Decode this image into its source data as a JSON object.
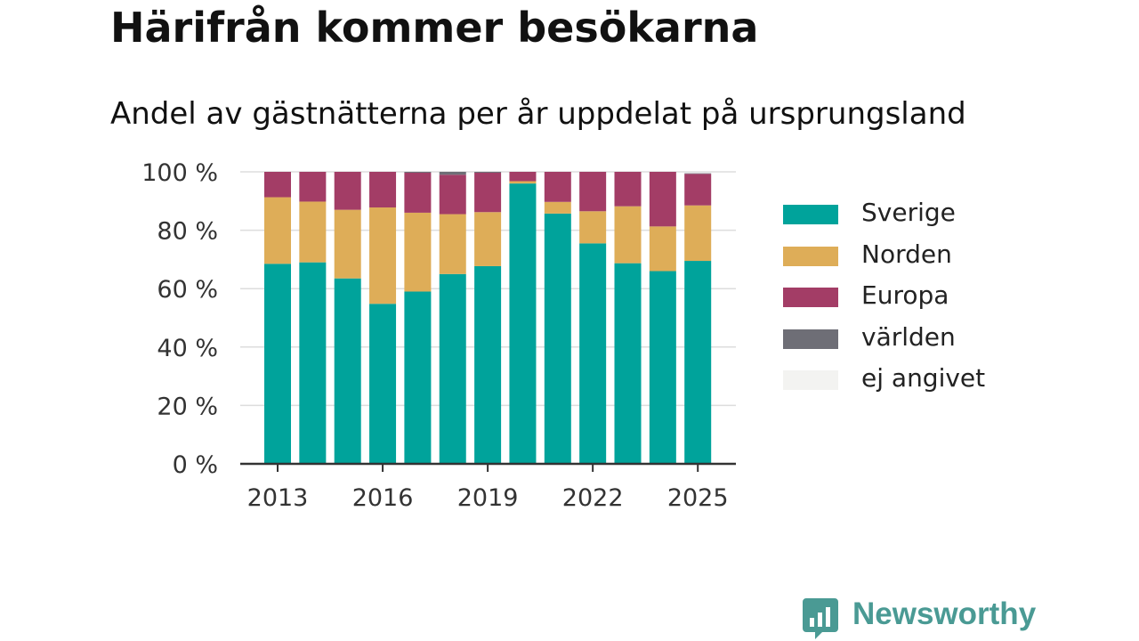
{
  "title": "Härifrån kommer besökarna",
  "subtitle": "Andel av gästnätterna per år uppdelat på ursprungsland",
  "brand": {
    "name": "Newsworthy",
    "color": "#4a9a94",
    "icon": "bar-chart-speech-bubble-icon"
  },
  "chart_data": {
    "type": "bar",
    "stacked": true,
    "title": "Härifrån kommer besökarna",
    "subtitle": "Andel av gästnätterna per år uppdelat på ursprungsland",
    "xlabel": "",
    "ylabel": "",
    "categories": [
      2013,
      2014,
      2015,
      2016,
      2017,
      2018,
      2019,
      2020,
      2021,
      2022,
      2023,
      2024,
      2025
    ],
    "x_tick_labels": [
      "2013",
      "2016",
      "2019",
      "2022",
      "2025"
    ],
    "y_tick_labels": [
      "0 %",
      "20 %",
      "40 %",
      "60 %",
      "80 %",
      "100 %"
    ],
    "ylim": [
      0,
      100
    ],
    "grid": "horizontal",
    "legend_position": "right",
    "series": [
      {
        "name": "Sverige",
        "color": "#00a39b",
        "values": [
          68.5,
          69,
          63.5,
          54.8,
          59,
          65,
          67.7,
          96,
          85.7,
          75.5,
          68.7,
          66,
          69.5
        ]
      },
      {
        "name": "Norden",
        "color": "#dead58",
        "values": [
          22.8,
          20.8,
          23.5,
          33,
          27,
          20.5,
          18.5,
          0.8,
          4,
          11,
          19.5,
          15.3,
          19
        ]
      },
      {
        "name": "Europa",
        "color": "#a33d66",
        "values": [
          8.7,
          10.2,
          13,
          12.2,
          13.7,
          13.5,
          13.5,
          3.2,
          10.3,
          13.5,
          11.8,
          18.7,
          10.8
        ]
      },
      {
        "name": "världen",
        "color": "#6e6e76",
        "values": [
          0,
          0,
          0,
          0,
          0.3,
          1,
          0.3,
          0,
          0,
          0,
          0,
          0,
          0.2
        ]
      },
      {
        "name": "ej angivet",
        "color": "#f3f3f1",
        "values": [
          0,
          0,
          0,
          0,
          0,
          0,
          0,
          0,
          0,
          0,
          0,
          0,
          0
        ]
      }
    ]
  }
}
